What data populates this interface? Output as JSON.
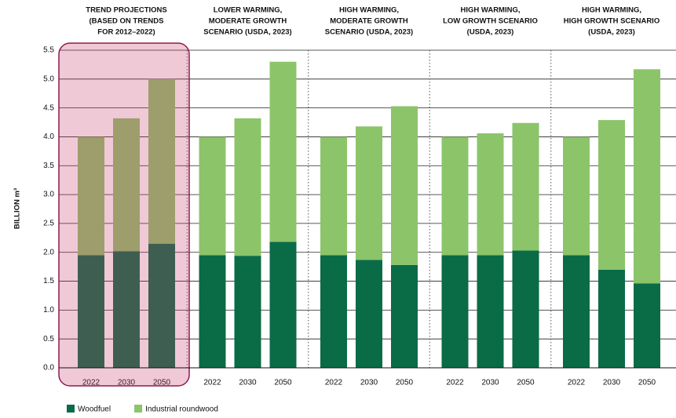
{
  "chart_data": {
    "type": "grouped-stacked-bar",
    "y_label": "BILLION m³",
    "groups": [
      {
        "title_lines": [
          "TREND PROJECTIONS",
          "(BASED ON TRENDS",
          "FOR 2012–2022)"
        ],
        "categories": [
          "2022",
          "2030",
          "2050"
        ]
      },
      {
        "title_lines": [
          "LOWER WARMING,",
          "MODERATE GROWTH",
          "SCENARIO (USDA, 2023)"
        ],
        "categories": [
          "2022",
          "2030",
          "2050"
        ]
      },
      {
        "title_lines": [
          "HIGH WARMING,",
          "MODERATE GROWTH",
          "SCENARIO (USDA, 2023)"
        ],
        "categories": [
          "2022",
          "2030",
          "2050"
        ]
      },
      {
        "title_lines": [
          "HIGH WARMING,",
          "LOW GROWTH SCENARIO",
          "(USDA, 2023)"
        ],
        "categories": [
          "2022",
          "2030",
          "2050"
        ]
      },
      {
        "title_lines": [
          "HIGH WARMING,",
          "HIGH GROWTH SCENARIO",
          "(USDA, 2023)"
        ],
        "categories": [
          "2022",
          "2030",
          "2050"
        ]
      }
    ],
    "series": [
      {
        "name": "Woodfuel",
        "color": "#0a6b47",
        "values": [
          [
            1.95,
            2.02,
            2.15
          ],
          [
            1.95,
            1.94,
            2.18
          ],
          [
            1.95,
            1.87,
            1.78
          ],
          [
            1.95,
            1.95,
            2.03
          ],
          [
            1.95,
            1.7,
            1.46
          ]
        ]
      },
      {
        "name": "Industrial roundwood",
        "color": "#8cc46a",
        "values": [
          [
            2.05,
            2.3,
            2.85
          ],
          [
            2.05,
            2.38,
            3.12
          ],
          [
            2.05,
            2.31,
            2.75
          ],
          [
            2.05,
            2.11,
            2.21
          ],
          [
            2.05,
            2.59,
            3.71
          ]
        ]
      }
    ],
    "highlight_group": 0,
    "ylim": [
      0,
      5.5
    ],
    "yticks": [
      {
        "value": 0,
        "label": "0.0"
      },
      0.5,
      {
        "value": 1,
        "label": "1.0"
      },
      1.5,
      {
        "value": 2,
        "label": "2.0"
      },
      2.5,
      {
        "value": 3,
        "label": "3.0"
      },
      3.5,
      {
        "value": 4,
        "label": "4.0"
      },
      4.5,
      {
        "value": 5,
        "label": "5.0"
      },
      5.5
    ],
    "grid": true,
    "legend": "bottom-left"
  }
}
